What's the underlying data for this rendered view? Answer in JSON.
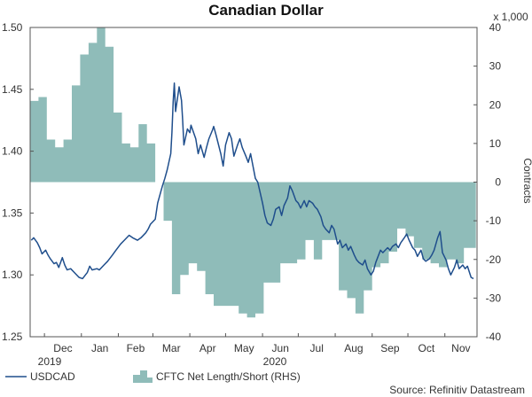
{
  "chart_data": {
    "type": "line",
    "title": "Canadian Dollar",
    "left_axis": {
      "ylim": [
        1.25,
        1.5
      ],
      "ticks": [
        "1.50",
        "1.45",
        "1.40",
        "1.35",
        "1.30",
        "1.25"
      ]
    },
    "right_axis": {
      "label": "Contracts",
      "scale_note": "x 1,000",
      "ylim": [
        -40,
        40
      ],
      "ticks": [
        "40",
        "30",
        "20",
        "10",
        "0",
        "-10",
        "-20",
        "-30",
        "-40"
      ]
    },
    "x_axis": {
      "months": [
        "Dec",
        "Jan",
        "Feb",
        "Mar",
        "Apr",
        "May",
        "Jun",
        "Jul",
        "Aug",
        "Sep",
        "Oct",
        "Nov"
      ],
      "years": [
        "2019",
        "2020"
      ]
    },
    "legend": {
      "line_label": "USDCAD",
      "area_label": "CFTC Net Length/Short (RHS)",
      "placement": "bottom-left"
    },
    "source": "Source: Refinitiv Datastream",
    "colors": {
      "line": "#1f4e8c",
      "area": "#8fbcb9",
      "axis": "#555555"
    },
    "series": [
      {
        "name": "USDCAD",
        "axis": "left",
        "points": [
          [
            "2019-11-20",
            1.328
          ],
          [
            "2019-11-22",
            1.33
          ],
          [
            "2019-11-25",
            1.326
          ],
          [
            "2019-11-27",
            1.322
          ],
          [
            "2019-11-29",
            1.317
          ],
          [
            "2019-12-02",
            1.32
          ],
          [
            "2019-12-04",
            1.316
          ],
          [
            "2019-12-06",
            1.313
          ],
          [
            "2019-12-09",
            1.309
          ],
          [
            "2019-12-11",
            1.31
          ],
          [
            "2019-12-13",
            1.306
          ],
          [
            "2019-12-16",
            1.314
          ],
          [
            "2019-12-18",
            1.308
          ],
          [
            "2019-12-20",
            1.304
          ],
          [
            "2019-12-23",
            1.305
          ],
          [
            "2019-12-26",
            1.302
          ],
          [
            "2019-12-30",
            1.298
          ],
          [
            "2020-01-02",
            1.297
          ],
          [
            "2020-01-06",
            1.302
          ],
          [
            "2020-01-08",
            1.307
          ],
          [
            "2020-01-10",
            1.304
          ],
          [
            "2020-01-14",
            1.305
          ],
          [
            "2020-01-16",
            1.304
          ],
          [
            "2020-01-20",
            1.308
          ],
          [
            "2020-01-23",
            1.311
          ],
          [
            "2020-01-27",
            1.316
          ],
          [
            "2020-01-30",
            1.32
          ],
          [
            "2020-02-03",
            1.325
          ],
          [
            "2020-02-06",
            1.328
          ],
          [
            "2020-02-10",
            1.332
          ],
          [
            "2020-02-13",
            1.33
          ],
          [
            "2020-02-17",
            1.328
          ],
          [
            "2020-02-20",
            1.33
          ],
          [
            "2020-02-24",
            1.334
          ],
          [
            "2020-02-26",
            1.337
          ],
          [
            "2020-02-28",
            1.341
          ],
          [
            "2020-03-03",
            1.345
          ],
          [
            "2020-03-05",
            1.358
          ],
          [
            "2020-03-09",
            1.372
          ],
          [
            "2020-03-11",
            1.378
          ],
          [
            "2020-03-13",
            1.385
          ],
          [
            "2020-03-16",
            1.398
          ],
          [
            "2020-03-17",
            1.415
          ],
          [
            "2020-03-18",
            1.44
          ],
          [
            "2020-03-19",
            1.455
          ],
          [
            "2020-03-20",
            1.432
          ],
          [
            "2020-03-23",
            1.452
          ],
          [
            "2020-03-25",
            1.441
          ],
          [
            "2020-03-26",
            1.425
          ],
          [
            "2020-03-27",
            1.405
          ],
          [
            "2020-03-30",
            1.418
          ],
          [
            "2020-04-01",
            1.415
          ],
          [
            "2020-04-02",
            1.421
          ],
          [
            "2020-04-06",
            1.41
          ],
          [
            "2020-04-08",
            1.398
          ],
          [
            "2020-04-10",
            1.405
          ],
          [
            "2020-04-13",
            1.395
          ],
          [
            "2020-04-15",
            1.403
          ],
          [
            "2020-04-17",
            1.41
          ],
          [
            "2020-04-20",
            1.417
          ],
          [
            "2020-04-21",
            1.42
          ],
          [
            "2020-04-23",
            1.413
          ],
          [
            "2020-04-27",
            1.398
          ],
          [
            "2020-04-29",
            1.388
          ],
          [
            "2020-05-01",
            1.405
          ],
          [
            "2020-05-04",
            1.415
          ],
          [
            "2020-05-06",
            1.41
          ],
          [
            "2020-05-08",
            1.396
          ],
          [
            "2020-05-11",
            1.405
          ],
          [
            "2020-05-13",
            1.41
          ],
          [
            "2020-05-15",
            1.403
          ],
          [
            "2020-05-18",
            1.396
          ],
          [
            "2020-05-20",
            1.391
          ],
          [
            "2020-05-22",
            1.398
          ],
          [
            "2020-05-26",
            1.378
          ],
          [
            "2020-05-28",
            1.375
          ],
          [
            "2020-06-01",
            1.358
          ],
          [
            "2020-06-03",
            1.348
          ],
          [
            "2020-06-05",
            1.342
          ],
          [
            "2020-06-08",
            1.34
          ],
          [
            "2020-06-10",
            1.345
          ],
          [
            "2020-06-12",
            1.353
          ],
          [
            "2020-06-15",
            1.355
          ],
          [
            "2020-06-17",
            1.348
          ],
          [
            "2020-06-19",
            1.356
          ],
          [
            "2020-06-22",
            1.362
          ],
          [
            "2020-06-24",
            1.372
          ],
          [
            "2020-06-26",
            1.368
          ],
          [
            "2020-06-29",
            1.36
          ],
          [
            "2020-07-01",
            1.358
          ],
          [
            "2020-07-03",
            1.354
          ],
          [
            "2020-07-06",
            1.36
          ],
          [
            "2020-07-08",
            1.355
          ],
          [
            "2020-07-10",
            1.36
          ],
          [
            "2020-07-13",
            1.358
          ],
          [
            "2020-07-15",
            1.355
          ],
          [
            "2020-07-17",
            1.353
          ],
          [
            "2020-07-20",
            1.347
          ],
          [
            "2020-07-22",
            1.34
          ],
          [
            "2020-07-24",
            1.337
          ],
          [
            "2020-07-27",
            1.334
          ],
          [
            "2020-07-29",
            1.34
          ],
          [
            "2020-07-31",
            1.337
          ],
          [
            "2020-08-03",
            1.325
          ],
          [
            "2020-08-05",
            1.328
          ],
          [
            "2020-08-07",
            1.322
          ],
          [
            "2020-08-10",
            1.325
          ],
          [
            "2020-08-12",
            1.32
          ],
          [
            "2020-08-14",
            1.323
          ],
          [
            "2020-08-17",
            1.316
          ],
          [
            "2020-08-19",
            1.312
          ],
          [
            "2020-08-21",
            1.31
          ],
          [
            "2020-08-24",
            1.308
          ],
          [
            "2020-08-26",
            1.312
          ],
          [
            "2020-08-28",
            1.305
          ],
          [
            "2020-08-31",
            1.3
          ],
          [
            "2020-09-02",
            1.303
          ],
          [
            "2020-09-04",
            1.31
          ],
          [
            "2020-09-08",
            1.32
          ],
          [
            "2020-09-10",
            1.318
          ],
          [
            "2020-09-14",
            1.322
          ],
          [
            "2020-09-16",
            1.32
          ],
          [
            "2020-09-18",
            1.323
          ],
          [
            "2020-09-21",
            1.325
          ],
          [
            "2020-09-23",
            1.322
          ],
          [
            "2020-09-25",
            1.326
          ],
          [
            "2020-09-28",
            1.33
          ],
          [
            "2020-09-30",
            1.333
          ],
          [
            "2020-10-02",
            1.328
          ],
          [
            "2020-10-05",
            1.322
          ],
          [
            "2020-10-07",
            1.32
          ],
          [
            "2020-10-09",
            1.315
          ],
          [
            "2020-10-12",
            1.32
          ],
          [
            "2020-10-14",
            1.313
          ],
          [
            "2020-10-16",
            1.311
          ],
          [
            "2020-10-19",
            1.313
          ],
          [
            "2020-10-21",
            1.316
          ],
          [
            "2020-10-23",
            1.32
          ],
          [
            "2020-10-26",
            1.33
          ],
          [
            "2020-10-28",
            1.335
          ],
          [
            "2020-10-30",
            1.318
          ],
          [
            "2020-11-02",
            1.312
          ],
          [
            "2020-11-04",
            1.305
          ],
          [
            "2020-11-06",
            1.3
          ],
          [
            "2020-11-09",
            1.306
          ],
          [
            "2020-11-11",
            1.312
          ],
          [
            "2020-11-13",
            1.305
          ],
          [
            "2020-11-16",
            1.308
          ],
          [
            "2020-11-18",
            1.305
          ],
          [
            "2020-11-20",
            1.307
          ],
          [
            "2020-11-23",
            1.298
          ],
          [
            "2020-11-25",
            1.297
          ]
        ]
      },
      {
        "name": "CFTC Net Length/Short (RHS)",
        "axis": "right",
        "steps": [
          [
            "2019-11-19",
            21
          ],
          [
            "2019-11-21",
            21
          ],
          [
            "2019-11-26",
            22
          ],
          [
            "2019-12-03",
            11
          ],
          [
            "2019-12-10",
            9
          ],
          [
            "2019-12-17",
            11
          ],
          [
            "2019-12-24",
            25
          ],
          [
            "2019-12-31",
            33
          ],
          [
            "2020-01-07",
            36
          ],
          [
            "2020-01-14",
            40
          ],
          [
            "2020-01-21",
            35
          ],
          [
            "2020-01-28",
            18
          ],
          [
            "2020-02-04",
            10
          ],
          [
            "2020-02-11",
            9
          ],
          [
            "2020-02-18",
            15
          ],
          [
            "2020-02-25",
            10
          ],
          [
            "2020-03-03",
            0
          ],
          [
            "2020-03-10",
            -10
          ],
          [
            "2020-03-17",
            -29
          ],
          [
            "2020-03-24",
            -24
          ],
          [
            "2020-03-31",
            -21
          ],
          [
            "2020-04-07",
            -23
          ],
          [
            "2020-04-14",
            -29
          ],
          [
            "2020-04-21",
            -32
          ],
          [
            "2020-04-28",
            -32
          ],
          [
            "2020-05-05",
            -32
          ],
          [
            "2020-05-12",
            -34
          ],
          [
            "2020-05-19",
            -35
          ],
          [
            "2020-05-26",
            -34
          ],
          [
            "2020-06-02",
            -26
          ],
          [
            "2020-06-09",
            -26
          ],
          [
            "2020-06-16",
            -21
          ],
          [
            "2020-06-23",
            -21
          ],
          [
            "2020-06-30",
            -20
          ],
          [
            "2020-07-07",
            -15
          ],
          [
            "2020-07-14",
            -20
          ],
          [
            "2020-07-21",
            -15
          ],
          [
            "2020-07-28",
            -15
          ],
          [
            "2020-08-04",
            -28
          ],
          [
            "2020-08-11",
            -30
          ],
          [
            "2020-08-18",
            -34
          ],
          [
            "2020-08-25",
            -28
          ],
          [
            "2020-09-01",
            -22
          ],
          [
            "2020-09-08",
            -21
          ],
          [
            "2020-09-15",
            -18
          ],
          [
            "2020-09-22",
            -12
          ],
          [
            "2020-09-29",
            -14
          ],
          [
            "2020-10-06",
            -17
          ],
          [
            "2020-10-13",
            -20
          ],
          [
            "2020-10-20",
            -21
          ],
          [
            "2020-10-27",
            -22
          ],
          [
            "2020-11-03",
            -20
          ],
          [
            "2020-11-10",
            -21
          ],
          [
            "2020-11-17",
            -17
          ],
          [
            "2020-11-24",
            -17
          ],
          [
            "2020-11-27",
            -17
          ]
        ]
      }
    ]
  }
}
